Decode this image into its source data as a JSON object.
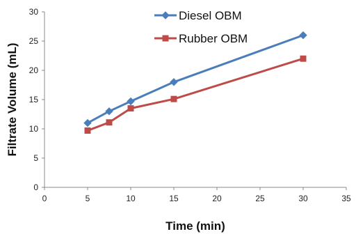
{
  "chart_data": {
    "type": "line",
    "title": "",
    "xlabel": "Time (min)",
    "ylabel": "Filtrate Volume (mL)",
    "xlim": [
      0,
      35
    ],
    "ylim": [
      0,
      30
    ],
    "x_ticks": [
      0,
      5,
      10,
      15,
      20,
      25,
      30,
      35
    ],
    "y_ticks": [
      0,
      5,
      10,
      15,
      20,
      25,
      30
    ],
    "grid": false,
    "legend_position": "top-center",
    "series": [
      {
        "name": "Diesel OBM",
        "color": "#4a7ebb",
        "marker": "diamond",
        "x": [
          5,
          7.5,
          10,
          15,
          30
        ],
        "y": [
          11,
          13,
          14.7,
          18,
          26
        ]
      },
      {
        "name": "Rubber OBM",
        "color": "#be4b48",
        "marker": "square",
        "x": [
          5,
          7.5,
          10,
          15,
          30
        ],
        "y": [
          9.7,
          11.1,
          13.5,
          15.1,
          22
        ]
      }
    ]
  }
}
